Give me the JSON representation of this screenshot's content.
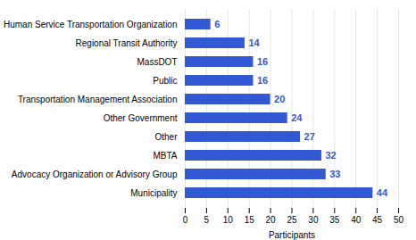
{
  "chart_data": {
    "type": "bar",
    "orientation": "horizontal",
    "categories": [
      "Human Service Transportation Organization",
      "Regional Transit Authority",
      "MassDOT",
      "Public",
      "Transportation Management Association",
      "Other Government",
      "Other",
      "MBTA",
      "Advocacy Organization or Advisory Group",
      "Municipality"
    ],
    "values": [
      6,
      14,
      16,
      16,
      20,
      24,
      27,
      32,
      33,
      44
    ],
    "color": "#3358d4",
    "xlabel": "Participants",
    "xlim": [
      0,
      50
    ],
    "xticks": [
      0,
      5,
      10,
      15,
      20,
      25,
      30,
      35,
      40,
      45,
      50
    ],
    "grid": true,
    "data_labels": true
  }
}
